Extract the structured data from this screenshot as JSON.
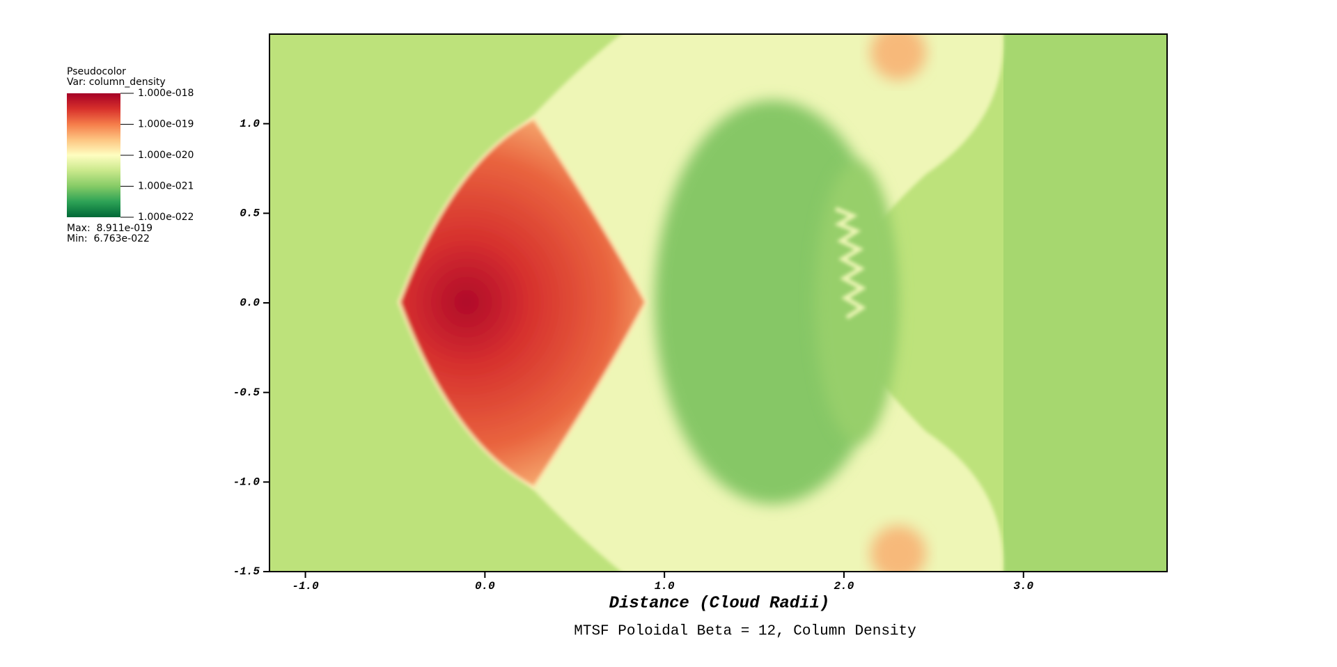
{
  "chart_data": {
    "type": "heatmap",
    "title": "MTSF Poloidal Beta = 12, Column Density",
    "x_label": "Distance (Cloud Radii)",
    "xlim": [
      -1.2,
      3.8
    ],
    "ylim": [
      -1.5,
      1.5
    ],
    "xticks": [
      {
        "value": -1,
        "label": "-1.0"
      },
      {
        "value": 0,
        "label": "0.0"
      },
      {
        "value": 1,
        "label": "1.0"
      },
      {
        "value": 2,
        "label": "2.0"
      },
      {
        "value": 3,
        "label": "3.0"
      }
    ],
    "yticks": [
      {
        "value": 1,
        "label": "1.0"
      },
      {
        "value": 0.5,
        "label": "0.5"
      },
      {
        "value": 0,
        "label": "0.0"
      },
      {
        "value": -0.5,
        "label": "-0.5"
      },
      {
        "value": -1,
        "label": "-1.0"
      },
      {
        "value": -1.5,
        "label": "-1.5"
      }
    ],
    "legend": {
      "title": "Pseudocolor",
      "variable": "Var: column_density",
      "log_scale": true,
      "range": [
        1e-22,
        1e-18
      ],
      "ticks": [
        {
          "value": 1e-18,
          "label": "1.000e-018"
        },
        {
          "value": 1e-19,
          "label": "1.000e-019"
        },
        {
          "value": 1e-20,
          "label": "1.000e-020"
        },
        {
          "value": 1e-21,
          "label": "1.000e-021"
        },
        {
          "value": 1e-22,
          "label": "1.000e-022"
        }
      ],
      "colors": [
        "#a50026",
        "#d7302b",
        "#f57d4a",
        "#fdc582",
        "#fefec0",
        "#c9e88b",
        "#86cb66",
        "#2da256",
        "#006837"
      ],
      "max": "Max:  8.911e-019",
      "min": "Min:  6.763e-022"
    }
  }
}
